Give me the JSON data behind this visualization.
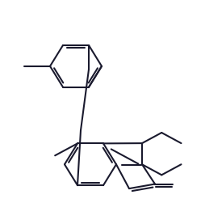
{
  "bg_color": "#ffffff",
  "line_color": "#1a1a2e",
  "line_width": 1.5,
  "figsize": [
    2.54,
    2.72
  ],
  "dpi": 100
}
